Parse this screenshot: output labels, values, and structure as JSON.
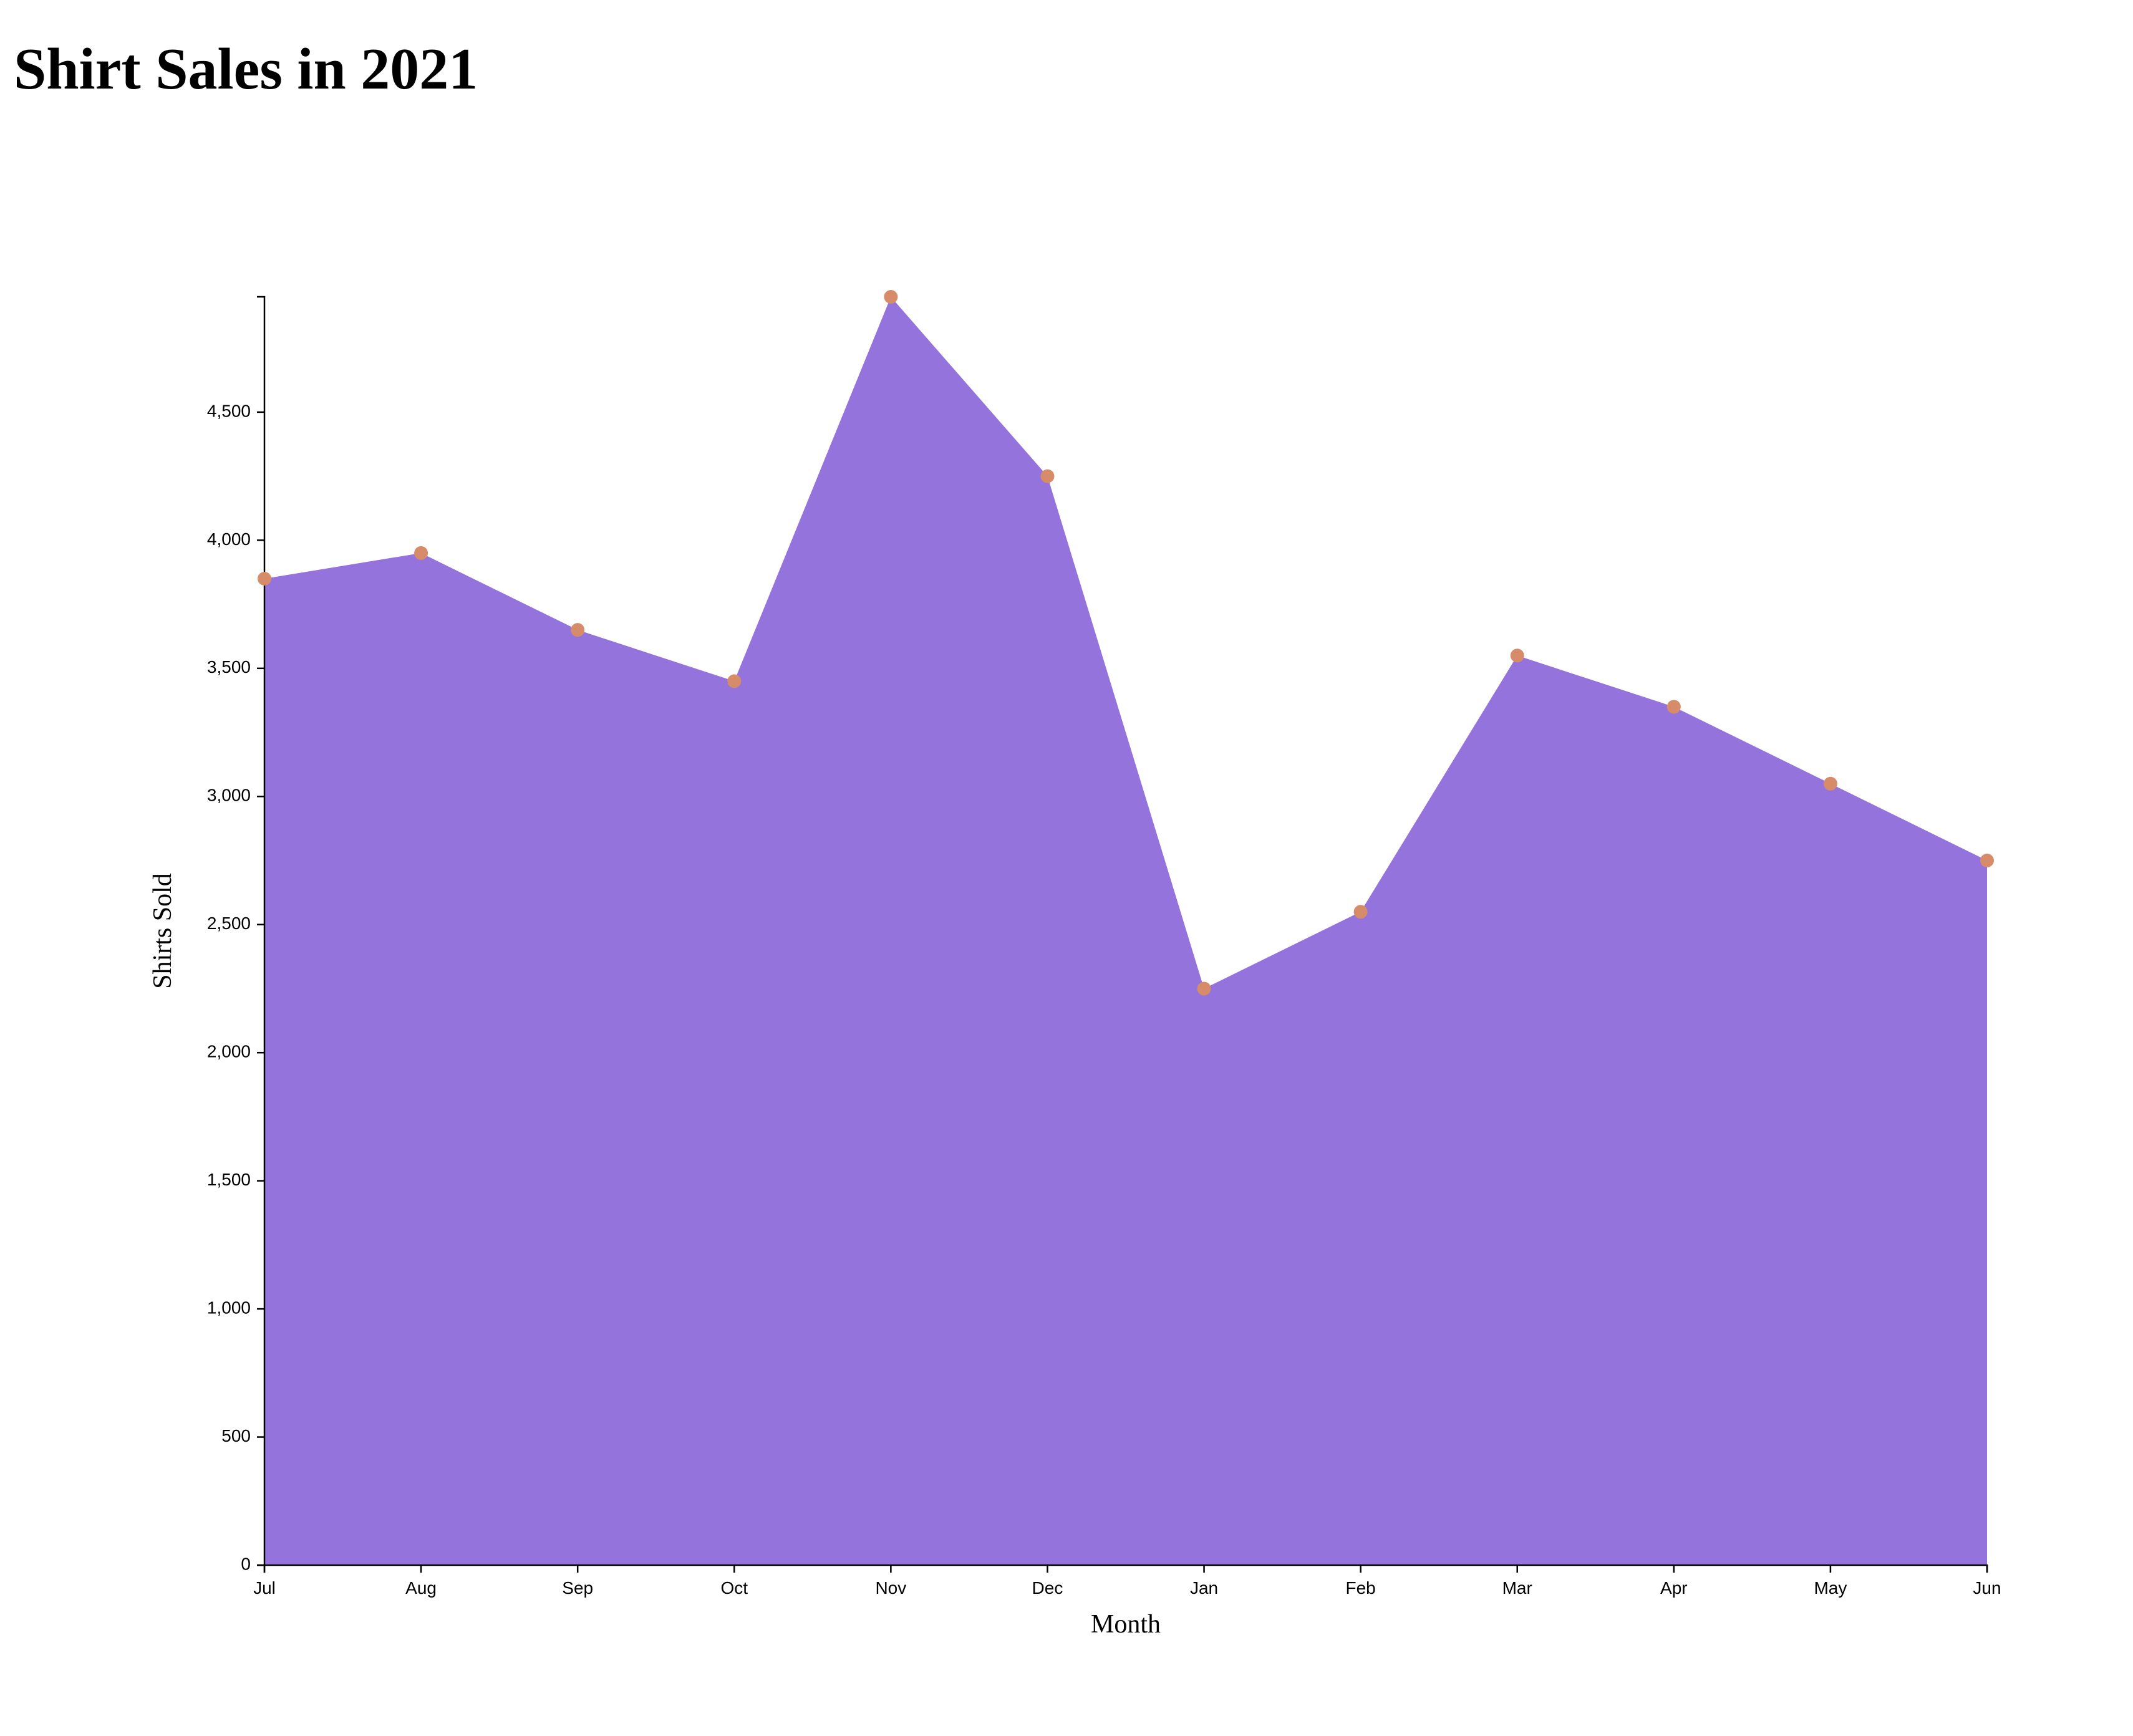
{
  "title": "Shirt Sales in 2021",
  "chart_data": {
    "type": "area",
    "title": "Shirt Sales in 2021",
    "xlabel": "Month",
    "ylabel": "Shirts Sold",
    "categories": [
      "Jul",
      "Aug",
      "Sep",
      "Oct",
      "Nov",
      "Dec",
      "Jan",
      "Feb",
      "Mar",
      "Apr",
      "May",
      "Jun"
    ],
    "values": [
      3850,
      3950,
      3650,
      3450,
      4950,
      4250,
      2250,
      2550,
      3550,
      3350,
      3050,
      2750
    ],
    "ylim": [
      0,
      4950
    ],
    "yticks": [
      0,
      500,
      1000,
      1500,
      2000,
      2500,
      3000,
      3500,
      4000,
      4500
    ],
    "ytick_labels": [
      "0",
      "500",
      "1,000",
      "1,500",
      "2,000",
      "2,500",
      "3,000",
      "3,500",
      "4,000",
      "4,500"
    ],
    "grid": false,
    "legend": "none",
    "colors": {
      "area": "#9573dc",
      "point": "#d68c68",
      "axis": "#000000"
    }
  }
}
